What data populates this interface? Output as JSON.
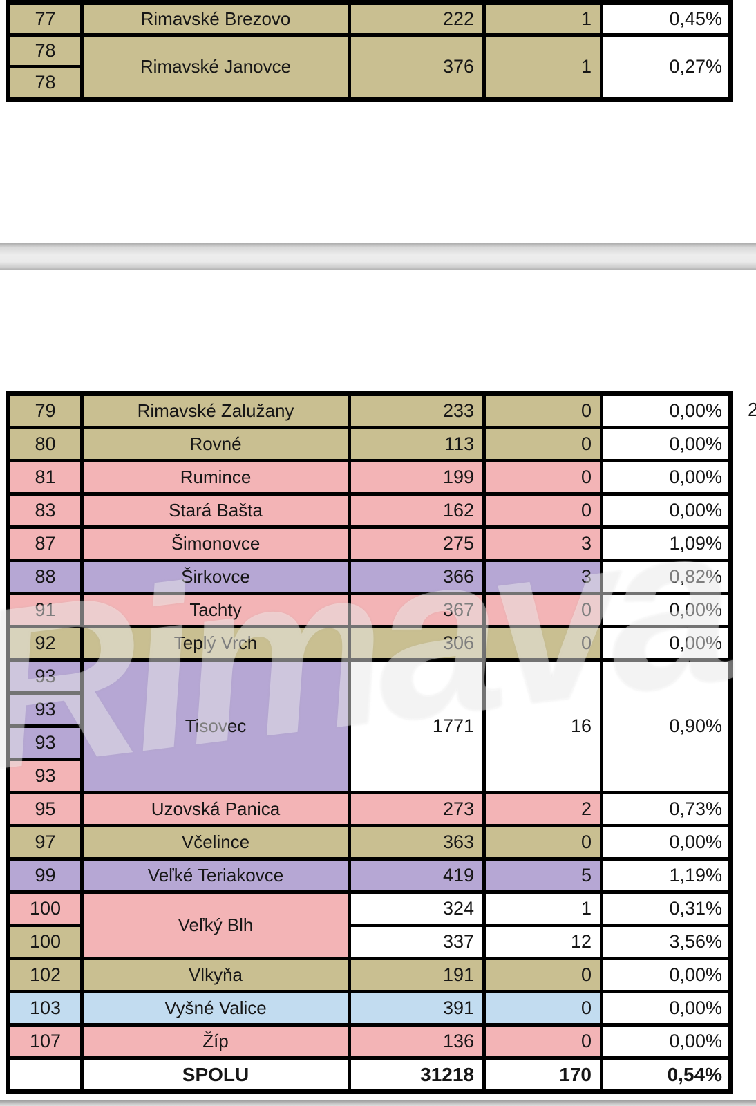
{
  "colors": {
    "tan": "#C9BF91",
    "pink": "#F3B4B6",
    "purple": "#B6A7D4",
    "blue": "#C2DCF0",
    "white": "#FFFFFF",
    "border": "#000000",
    "text": "#161616",
    "separator_gray": "#ECECEC"
  },
  "page": {
    "watermark_text": "Rimava",
    "edge_digit": "2"
  },
  "top_table": {
    "row_77": {
      "num": "77",
      "name": "Rimavské Brezovo",
      "v1": "222",
      "v2": "1",
      "pct": "0,45%",
      "color": "tan"
    },
    "row_78": {
      "num_a": "78",
      "num_b": "78",
      "name": "Rimavské Janovce",
      "v1": "376",
      "v2": "1",
      "pct": "0,27%",
      "color": "tan"
    }
  },
  "bottom_table": {
    "row_79": {
      "num": "79",
      "name": "Rimavské Zalužany",
      "v1": "233",
      "v2": "0",
      "pct": "0,00%",
      "color": "tan"
    },
    "row_80": {
      "num": "80",
      "name": "Rovné",
      "v1": "113",
      "v2": "0",
      "pct": "0,00%",
      "color": "tan"
    },
    "row_81": {
      "num": "81",
      "name": "Rumince",
      "v1": "199",
      "v2": "0",
      "pct": "0,00%",
      "color": "pink"
    },
    "row_83": {
      "num": "83",
      "name": "Stará Bašta",
      "v1": "162",
      "v2": "0",
      "pct": "0,00%",
      "color": "pink"
    },
    "row_87": {
      "num": "87",
      "name": "Šimonovce",
      "v1": "275",
      "v2": "3",
      "pct": "1,09%",
      "color": "pink"
    },
    "row_88": {
      "num": "88",
      "name": "Širkovce",
      "v1": "366",
      "v2": "3",
      "pct": "0,82%",
      "color": "purple"
    },
    "row_91": {
      "num": "91",
      "name": "Tachty",
      "v1": "367",
      "v2": "0",
      "pct": "0,00%",
      "color": "pink"
    },
    "row_92": {
      "num": "92",
      "name": "Teplý Vrch",
      "v1": "306",
      "v2": "0",
      "pct": "0,00%",
      "color": "tan"
    },
    "tisovec": {
      "nums": [
        "93",
        "93",
        "93",
        "93"
      ],
      "num_colors": [
        "purple",
        "purple",
        "purple",
        "pink"
      ],
      "name": "Tisovec",
      "name_color": "purple",
      "v1": "1771",
      "v2": "16",
      "pct": "0,90%"
    },
    "row_95": {
      "num": "95",
      "name": "Uzovská Panica",
      "v1": "273",
      "v2": "2",
      "pct": "0,73%",
      "color": "pink"
    },
    "row_97": {
      "num": "97",
      "name": "Včelince",
      "v1": "363",
      "v2": "0",
      "pct": "0,00%",
      "color": "tan"
    },
    "row_99": {
      "num": "99",
      "name": "Veľké Teriakovce",
      "v1": "419",
      "v2": "5",
      "pct": "1,19%",
      "color": "purple"
    },
    "velky_blh": {
      "nums": [
        "100",
        "100"
      ],
      "num_colors": [
        "pink",
        "tan"
      ],
      "name": "Veľký Blh",
      "name_color": "pink",
      "sub": [
        {
          "v1": "324",
          "v2": "1",
          "pct": "0,31%"
        },
        {
          "v1": "337",
          "v2": "12",
          "pct": "3,56%"
        }
      ]
    },
    "row_102": {
      "num": "102",
      "name": "Vlkyňa",
      "v1": "191",
      "v2": "0",
      "pct": "0,00%",
      "color": "tan"
    },
    "row_103": {
      "num": "103",
      "name": "Vyšné Valice",
      "v1": "391",
      "v2": "0",
      "pct": "0,00%",
      "color": "blue"
    },
    "row_107": {
      "num": "107",
      "name": "Žíp",
      "v1": "136",
      "v2": "0",
      "pct": "0,00%",
      "color": "pink"
    },
    "total": {
      "num": "",
      "name": "SPOLU",
      "v1": "31218",
      "v2": "170",
      "pct": "0,54%"
    }
  }
}
